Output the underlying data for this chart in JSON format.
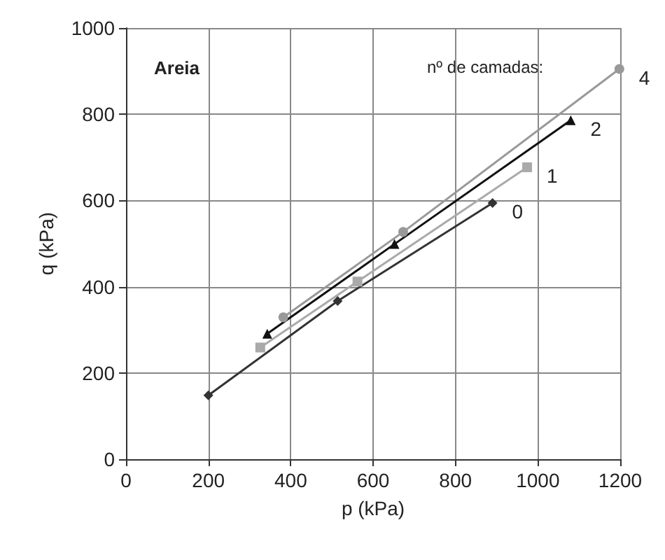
{
  "chart_data": {
    "type": "line",
    "xlabel": "p (kPa)",
    "ylabel": "q (kPa)",
    "annotations": [
      "Areia",
      "nº de camadas:"
    ],
    "xlim": [
      0,
      1200
    ],
    "xticks": [
      0,
      200,
      400,
      600,
      800,
      1000,
      1200
    ],
    "ylim": [
      0,
      1000
    ],
    "yticks": [
      0,
      200,
      400,
      600,
      800,
      1000
    ],
    "grid": true,
    "legend": false,
    "series": [
      {
        "name": "0",
        "color": "#333333",
        "marker": "diamond",
        "x": [
          200,
          514,
          890
        ],
        "values": [
          148,
          367,
          594
        ]
      },
      {
        "name": "1",
        "color": "#aaaaaa",
        "marker": "square",
        "x": [
          326,
          562,
          974
        ],
        "values": [
          259,
          412,
          677
        ]
      },
      {
        "name": "2",
        "color": "#111111",
        "marker": "triangle",
        "x": [
          343,
          652,
          1080
        ],
        "values": [
          291,
          499,
          786
        ]
      },
      {
        "name": "4",
        "color": "#999999",
        "marker": "circle",
        "x": [
          382,
          673,
          1198
        ],
        "values": [
          329,
          527,
          905
        ]
      }
    ]
  }
}
